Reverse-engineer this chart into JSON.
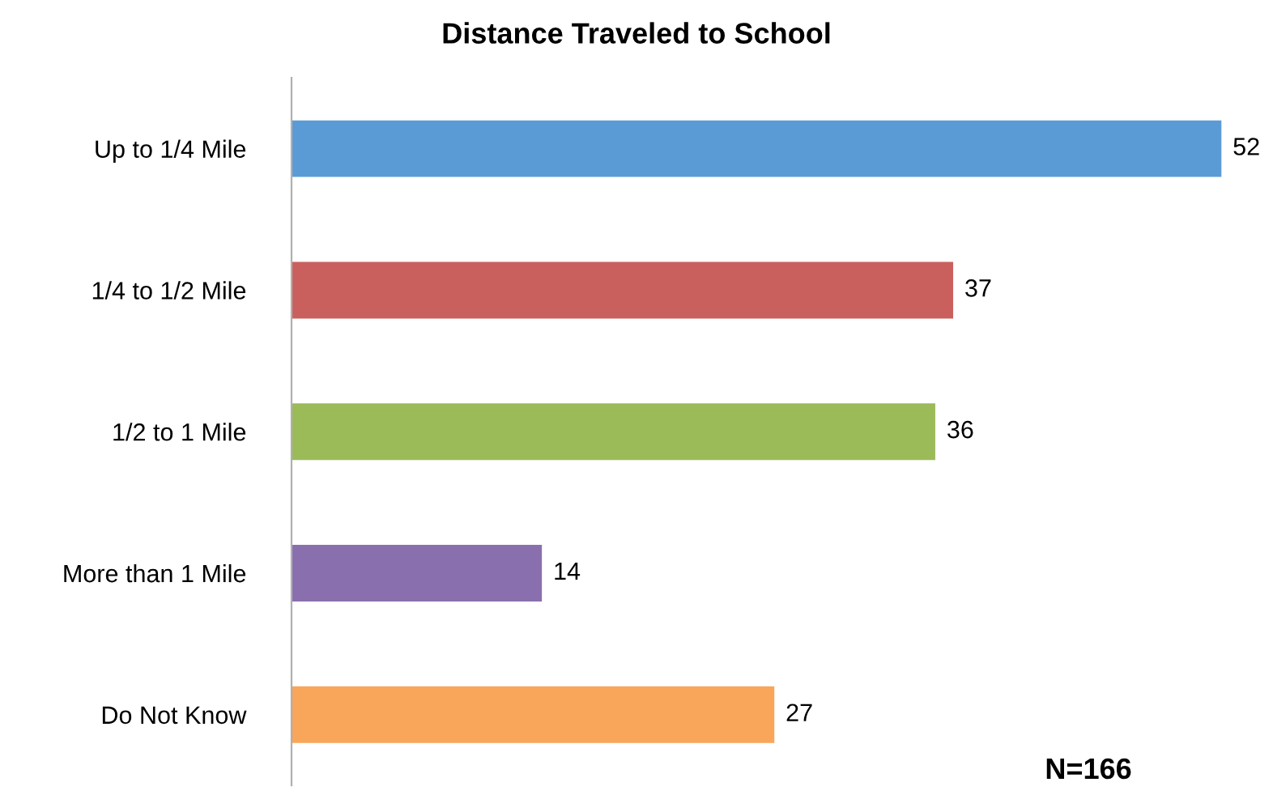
{
  "chart_data": {
    "type": "bar",
    "orientation": "horizontal",
    "title": "Distance Traveled to School",
    "categories": [
      "Up to 1/4 Mile",
      "1/4 to 1/2 Mile",
      "1/2 to 1 Mile",
      "More than 1 Mile",
      "Do Not Know"
    ],
    "values": [
      52,
      37,
      36,
      14,
      27
    ],
    "colors": [
      "#5b9bd5",
      "#c9605d",
      "#9bbb59",
      "#8a6fae",
      "#f9a55a"
    ],
    "data_labels": true,
    "grid": false,
    "legend": false,
    "annotations": [
      "N=166"
    ]
  }
}
